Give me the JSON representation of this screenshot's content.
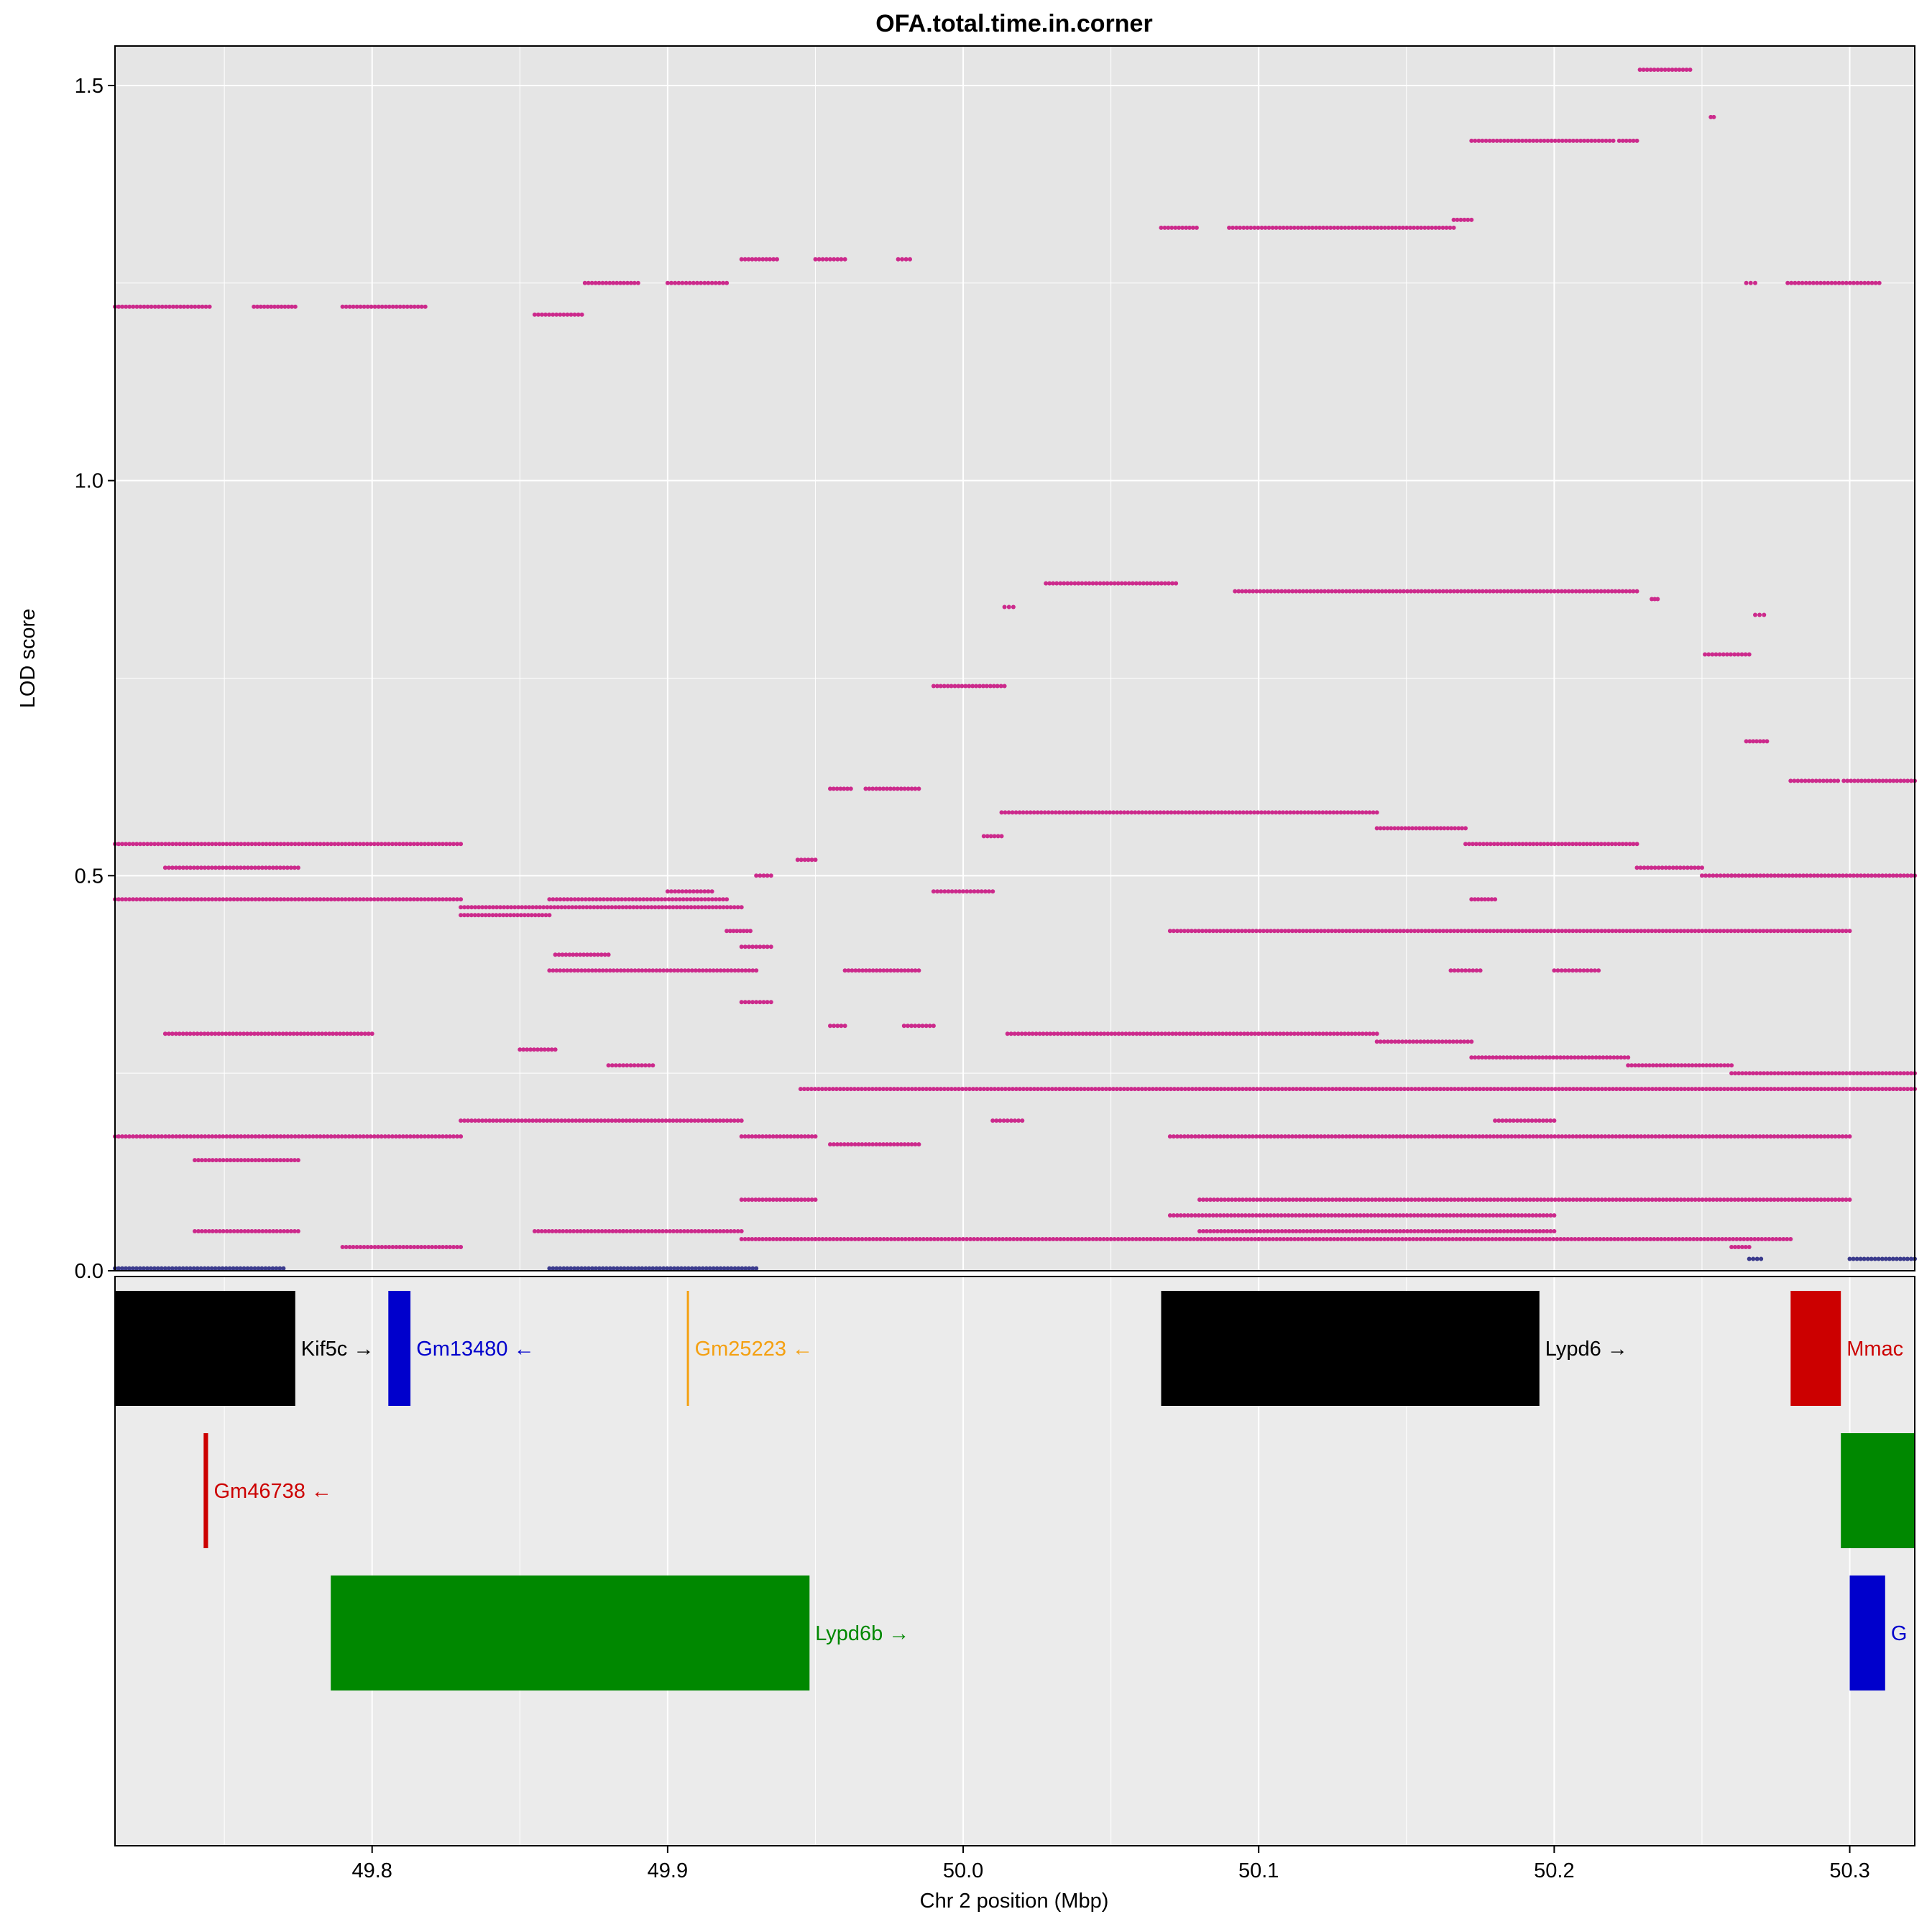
{
  "chart_data": {
    "type": "scatter",
    "title": "OFA.total.time.in.corner",
    "xlabel": "Chr 2 position (Mbp)",
    "ylabel": "LOD score",
    "xlim": [
      49.713,
      50.322
    ],
    "ylim": [
      0,
      1.55
    ],
    "x_ticks": [
      49.8,
      49.9,
      50.0,
      50.1,
      50.2,
      50.3
    ],
    "x_tick_labels": [
      "49.8",
      "49.9",
      "50.0",
      "50.1",
      "50.2",
      "50.3"
    ],
    "y_ticks": [
      0.0,
      0.5,
      1.0,
      1.5
    ],
    "y_tick_labels": [
      "0.0",
      "0.5",
      "1.0",
      "1.5"
    ],
    "grid": true,
    "colors": {
      "point": "#cc2a8c",
      "point_low": "#3a3a8c",
      "panel_bg": "#e5e5e5",
      "gene_panel_bg": "#ebebeb",
      "grid": "#ffffff"
    },
    "series": [
      {
        "segments": [
          [
            49.713,
            49.745,
            1.22
          ],
          [
            49.76,
            49.774,
            1.22
          ],
          [
            49.79,
            49.818,
            1.22
          ],
          [
            49.855,
            49.871,
            1.21
          ],
          [
            49.872,
            49.89,
            1.25
          ],
          [
            49.9,
            49.92,
            1.25
          ],
          [
            49.925,
            49.937,
            1.28
          ],
          [
            49.95,
            49.96,
            1.28
          ],
          [
            49.978,
            49.982,
            1.28
          ],
          [
            50.067,
            50.079,
            1.32
          ],
          [
            50.09,
            50.166,
            1.32
          ],
          [
            50.166,
            50.172,
            1.33
          ],
          [
            50.172,
            50.22,
            1.43
          ],
          [
            50.222,
            50.228,
            1.43
          ],
          [
            50.229,
            50.246,
            1.52
          ],
          [
            50.253,
            50.254,
            1.46
          ],
          [
            50.265,
            50.268,
            1.25
          ],
          [
            50.279,
            50.31,
            1.25
          ],
          [
            50.014,
            50.017,
            0.84
          ],
          [
            50.028,
            50.072,
            0.87
          ],
          [
            50.092,
            50.228,
            0.86
          ],
          [
            50.233,
            50.235,
            0.85
          ],
          [
            50.251,
            50.266,
            0.78
          ],
          [
            50.268,
            50.271,
            0.83
          ],
          [
            49.99,
            50.014,
            0.74
          ],
          [
            49.955,
            49.962,
            0.61
          ],
          [
            49.967,
            49.985,
            0.61
          ],
          [
            49.92,
            49.928,
            0.43
          ],
          [
            50.007,
            50.013,
            0.55
          ],
          [
            50.013,
            50.14,
            0.58
          ],
          [
            50.14,
            50.17,
            0.56
          ],
          [
            50.265,
            50.272,
            0.67
          ],
          [
            50.28,
            50.296,
            0.62
          ],
          [
            50.298,
            50.322,
            0.62
          ],
          [
            50.17,
            50.228,
            0.54
          ],
          [
            50.228,
            50.25,
            0.51
          ],
          [
            50.25,
            50.26,
            0.5
          ],
          [
            50.26,
            50.322,
            0.5
          ],
          [
            49.713,
            49.83,
            0.54
          ],
          [
            49.713,
            49.83,
            0.47
          ],
          [
            49.83,
            49.925,
            0.46
          ],
          [
            49.83,
            49.86,
            0.45
          ],
          [
            49.86,
            49.92,
            0.47
          ],
          [
            49.9,
            49.915,
            0.48
          ],
          [
            49.99,
            50.01,
            0.48
          ],
          [
            49.73,
            49.775,
            0.51
          ],
          [
            49.93,
            49.935,
            0.5
          ],
          [
            49.944,
            49.95,
            0.52
          ],
          [
            50.172,
            50.18,
            0.47
          ],
          [
            50.07,
            50.3,
            0.43
          ],
          [
            49.862,
            49.88,
            0.4
          ],
          [
            49.925,
            49.935,
            0.41
          ],
          [
            49.86,
            49.93,
            0.38
          ],
          [
            49.96,
            49.985,
            0.38
          ],
          [
            50.165,
            50.175,
            0.38
          ],
          [
            50.2,
            50.215,
            0.38
          ],
          [
            49.925,
            49.935,
            0.34
          ],
          [
            49.955,
            49.96,
            0.31
          ],
          [
            49.98,
            49.99,
            0.31
          ],
          [
            50.015,
            50.14,
            0.3
          ],
          [
            50.14,
            50.172,
            0.29
          ],
          [
            50.172,
            50.225,
            0.27
          ],
          [
            50.225,
            50.26,
            0.26
          ],
          [
            50.26,
            50.322,
            0.25
          ],
          [
            49.945,
            50.322,
            0.23
          ],
          [
            49.73,
            49.8,
            0.3
          ],
          [
            49.85,
            49.862,
            0.28
          ],
          [
            49.88,
            49.895,
            0.26
          ],
          [
            49.713,
            49.83,
            0.17
          ],
          [
            49.83,
            49.925,
            0.19
          ],
          [
            49.925,
            49.95,
            0.17
          ],
          [
            49.955,
            49.985,
            0.16
          ],
          [
            50.01,
            50.02,
            0.19
          ],
          [
            50.07,
            50.3,
            0.17
          ],
          [
            50.18,
            50.2,
            0.19
          ],
          [
            49.74,
            49.775,
            0.14
          ],
          [
            49.74,
            49.775,
            0.05
          ],
          [
            49.79,
            49.83,
            0.03
          ],
          [
            49.855,
            49.885,
            0.05
          ],
          [
            49.885,
            49.925,
            0.05
          ],
          [
            49.925,
            49.95,
            0.04
          ],
          [
            49.95,
            50.1,
            0.04
          ],
          [
            50.1,
            50.28,
            0.04
          ],
          [
            50.08,
            50.3,
            0.09
          ],
          [
            50.07,
            50.2,
            0.07
          ],
          [
            49.925,
            49.95,
            0.09
          ],
          [
            50.08,
            50.2,
            0.05
          ],
          [
            50.26,
            50.266,
            0.03
          ]
        ]
      },
      {
        "name_style": "low",
        "segments": [
          [
            49.713,
            49.77,
            0.003
          ],
          [
            49.86,
            49.93,
            0.003
          ],
          [
            50.266,
            50.27,
            0.015
          ],
          [
            50.3,
            50.322,
            0.015
          ]
        ]
      }
    ],
    "genes": [
      {
        "name": "Kif5c",
        "arrow": "→",
        "start": 49.713,
        "end": 49.774,
        "row": 0,
        "color": "#000000"
      },
      {
        "name": "Gm13480",
        "arrow": "←",
        "start": 49.8055,
        "end": 49.813,
        "row": 0,
        "color": "#0000cc"
      },
      {
        "name": "Gm25223",
        "arrow": "←",
        "start": 49.9065,
        "end": 49.9068,
        "row": 0,
        "color": "#f4a011"
      },
      {
        "name": "Lypd6",
        "arrow": "→",
        "start": 50.067,
        "end": 50.195,
        "row": 0,
        "color": "#000000"
      },
      {
        "name": "Mmadhc",
        "arrow": "",
        "start": 50.28,
        "end": 50.297,
        "row": 0,
        "color": "#cc0000",
        "visible_label": "Mmac"
      },
      {
        "name": "Gm46738",
        "arrow": "←",
        "start": 49.743,
        "end": 49.7445,
        "row": 1,
        "color": "#cc0000"
      },
      {
        "name": "",
        "arrow": "",
        "start": 50.297,
        "end": 50.322,
        "row": 1,
        "color": "#008800"
      },
      {
        "name": "Lypd6b",
        "arrow": "→",
        "start": 49.786,
        "end": 49.948,
        "row": 2,
        "color": "#008800"
      },
      {
        "name": "G",
        "arrow": "",
        "start": 50.3,
        "end": 50.312,
        "row": 2,
        "color": "#0000cc"
      }
    ]
  }
}
